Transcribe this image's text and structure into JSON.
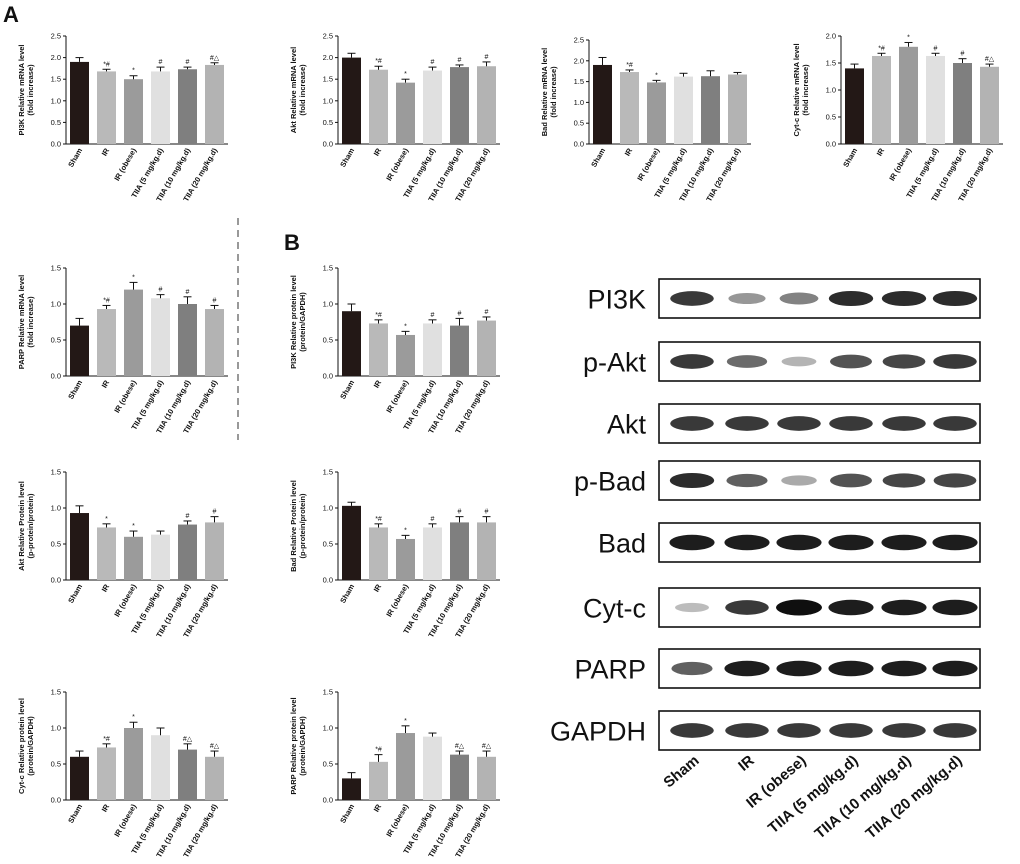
{
  "panel_labels": {
    "a": "A",
    "b": "B"
  },
  "colors": {
    "bars": [
      "#231816",
      "#b9b9b9",
      "#9b9b9b",
      "#e0e0e0",
      "#7f7f7f",
      "#b3b3b3"
    ],
    "axis": "#111111"
  },
  "chart_data": [
    {
      "id": "pi3k-mrna",
      "type": "bar",
      "title": "",
      "ylabel": [
        "PI3K Relative mRNA level",
        "(fold increase)"
      ],
      "categories": [
        "Sham",
        "IR",
        "IR (obese)",
        "TIIA (5 mg/kg.d)",
        "TIIA (10 mg/kg.d)",
        "TIIA (20 mg/kg.d)"
      ],
      "values": [
        1.9,
        1.68,
        1.5,
        1.68,
        1.73,
        1.83
      ],
      "errors": [
        0.1,
        0.05,
        0.08,
        0.1,
        0.05,
        0.05
      ],
      "significance": [
        "",
        "*#",
        "*",
        "#",
        "#",
        "#△"
      ],
      "ylim": [
        0,
        2.5
      ],
      "yticks": [
        "0.0",
        "0.5",
        "1.0",
        "1.5",
        "2.0",
        "2.5"
      ]
    },
    {
      "id": "akt-mrna",
      "type": "bar",
      "title": "",
      "ylabel": [
        "Akt Relative mRNA level",
        "(fold increase)"
      ],
      "categories": [
        "Sham",
        "IR",
        "IR (obese)",
        "TIIA (5 mg/kg.d)",
        "TIIA (10 mg/kg.d)",
        "TIIA (20 mg/kg.d)"
      ],
      "values": [
        2.0,
        1.72,
        1.42,
        1.7,
        1.78,
        1.8
      ],
      "errors": [
        0.1,
        0.08,
        0.08,
        0.08,
        0.05,
        0.1
      ],
      "significance": [
        "",
        "*#",
        "*",
        "#",
        "#",
        "#"
      ],
      "ylim": [
        0,
        2.5
      ],
      "yticks": [
        "0.0",
        "0.5",
        "1.0",
        "1.5",
        "2.0",
        "2.5"
      ]
    },
    {
      "id": "bad-mrna",
      "type": "bar",
      "title": "",
      "ylabel": [
        "Bad Relative mRNA level",
        "(fold increase)"
      ],
      "categories": [
        "Sham",
        "IR",
        "IR (obese)",
        "TIIA (5 mg/kg.d)",
        "TIIA (10 mg/kg.d)",
        "TIIA (20 mg/kg.d)"
      ],
      "values": [
        1.9,
        1.73,
        1.48,
        1.62,
        1.63,
        1.67
      ],
      "errors": [
        0.18,
        0.05,
        0.05,
        0.08,
        0.13,
        0.05
      ],
      "significance": [
        "",
        "*#",
        "*",
        "",
        "",
        ""
      ],
      "ylim": [
        0,
        2.5
      ],
      "yticks": [
        "0.0",
        "0.5",
        "1.0",
        "1.5",
        "2.0",
        "2.5"
      ]
    },
    {
      "id": "cytc-mrna",
      "type": "bar",
      "title": "",
      "ylabel": [
        "Cyt-c Relative mRNA level",
        "(fold increase)"
      ],
      "categories": [
        "Sham",
        "IR",
        "IR (obese)",
        "TIIA (5 mg/kg.d)",
        "TIIA (10 mg/kg.d)",
        "TIIA (20 mg/kg.d)"
      ],
      "values": [
        1.4,
        1.63,
        1.8,
        1.63,
        1.5,
        1.43
      ],
      "errors": [
        0.08,
        0.05,
        0.08,
        0.05,
        0.08,
        0.05
      ],
      "significance": [
        "",
        "*#",
        "*",
        "#",
        "#",
        "#△"
      ],
      "ylim": [
        0,
        2.0
      ],
      "yticks": [
        "0.0",
        "0.5",
        "1.0",
        "1.5",
        "2.0"
      ]
    },
    {
      "id": "parp-mrna",
      "type": "bar",
      "title": "",
      "ylabel": [
        "PARP Relative mRNA level",
        "(fold increase)"
      ],
      "categories": [
        "Sham",
        "IR",
        "IR (obese)",
        "TIIA (5 mg/kg.d)",
        "TIIA (10 mg/kg.d)",
        "TIIA (20 mg/kg.d)"
      ],
      "values": [
        0.7,
        0.93,
        1.2,
        1.08,
        1.0,
        0.93
      ],
      "errors": [
        0.1,
        0.05,
        0.1,
        0.05,
        0.1,
        0.05
      ],
      "significance": [
        "",
        "*#",
        "*",
        "#",
        "#",
        "#"
      ],
      "ylim": [
        0,
        1.5
      ],
      "yticks": [
        "0.0",
        "0.5",
        "1.0",
        "1.5"
      ]
    },
    {
      "id": "pi3k-protein",
      "type": "bar",
      "title": "",
      "ylabel": [
        "PI3K Relative protein level",
        "(protein/GAPDH)"
      ],
      "categories": [
        "Sham",
        "IR",
        "IR (obese)",
        "TIIA (5 mg/kg.d)",
        "TIIA (10 mg/kg.d)",
        "TIIA (20 mg/kg.d)"
      ],
      "values": [
        0.9,
        0.73,
        0.57,
        0.73,
        0.7,
        0.77
      ],
      "errors": [
        0.1,
        0.05,
        0.05,
        0.05,
        0.1,
        0.05
      ],
      "significance": [
        "",
        "*#",
        "*",
        "#",
        "#",
        "#"
      ],
      "ylim": [
        0,
        1.5
      ],
      "yticks": [
        "0.0",
        "0.5",
        "1.0",
        "1.5"
      ]
    },
    {
      "id": "akt-protein",
      "type": "bar",
      "title": "",
      "ylabel": [
        "Akt Relative Protein level",
        "(p-protein/protein)"
      ],
      "categories": [
        "Sham",
        "IR",
        "IR (obese)",
        "TIIA (5 mg/kg.d)",
        "TIIA (10 mg/kg.d)",
        "TIIA (20 mg/kg.d)"
      ],
      "values": [
        0.93,
        0.73,
        0.6,
        0.63,
        0.77,
        0.8
      ],
      "errors": [
        0.1,
        0.05,
        0.08,
        0.05,
        0.05,
        0.08
      ],
      "significance": [
        "",
        "*",
        "*",
        "",
        "#",
        "#"
      ],
      "ylim": [
        0,
        1.5
      ],
      "yticks": [
        "0.0",
        "0.5",
        "1.0",
        "1.5"
      ]
    },
    {
      "id": "bad-protein",
      "type": "bar",
      "title": "",
      "ylabel": [
        "Bad Relative Protein level",
        "(p-protein/protein)"
      ],
      "categories": [
        "Sham",
        "IR",
        "IR (obese)",
        "TIIA (5 mg/kg.d)",
        "TIIA (10 mg/kg.d)",
        "TIIA (20 mg/kg.d)"
      ],
      "values": [
        1.03,
        0.73,
        0.57,
        0.73,
        0.8,
        0.8
      ],
      "errors": [
        0.05,
        0.05,
        0.05,
        0.05,
        0.08,
        0.08
      ],
      "significance": [
        "",
        "*#",
        "*",
        "#",
        "#",
        "#"
      ],
      "ylim": [
        0,
        1.5
      ],
      "yticks": [
        "0.0",
        "0.5",
        "1.0",
        "1.5"
      ]
    },
    {
      "id": "cytc-protein",
      "type": "bar",
      "title": "",
      "ylabel": [
        "Cyt-c Relative protein level",
        "(protein/GAPDH)"
      ],
      "categories": [
        "Sham",
        "IR",
        "IR (obese)",
        "TIIA (5 mg/kg.d)",
        "TIIA (10 mg/kg.d)",
        "TIIA (20 mg/kg.d)"
      ],
      "values": [
        0.6,
        0.73,
        1.0,
        0.9,
        0.7,
        0.6
      ],
      "errors": [
        0.08,
        0.05,
        0.08,
        0.1,
        0.08,
        0.08
      ],
      "significance": [
        "",
        "*#",
        "*",
        "",
        "#△",
        "#△"
      ],
      "ylim": [
        0,
        1.5
      ],
      "yticks": [
        "0.0",
        "0.5",
        "1.0",
        "1.5"
      ]
    },
    {
      "id": "parp-protein",
      "type": "bar",
      "title": "",
      "ylabel": [
        "PARP Relative protein level",
        "(protein/GAPDH)"
      ],
      "categories": [
        "Sham",
        "IR",
        "IR (obese)",
        "TIIA (5 mg/kg.d)",
        "TIIA (10 mg/kg.d)",
        "TIIA (20 mg/kg.d)"
      ],
      "values": [
        0.3,
        0.53,
        0.93,
        0.88,
        0.63,
        0.6
      ],
      "errors": [
        0.08,
        0.1,
        0.1,
        0.05,
        0.05,
        0.08
      ],
      "significance": [
        "",
        "*#",
        "*",
        "",
        "#△",
        "#△"
      ],
      "ylim": [
        0,
        1.5
      ],
      "yticks": [
        "0.0",
        "0.5",
        "1.0",
        "1.5"
      ]
    }
  ],
  "western_blot": {
    "proteins": [
      "PI3K",
      "p-Akt",
      "Akt",
      "p-Bad",
      "Bad",
      "Cyt-c",
      "PARP",
      "GAPDH"
    ],
    "lanes": [
      "Sham",
      "IR",
      "IR (obese)",
      "TIIA (5 mg/kg.d)",
      "TIIA (10 mg/kg.d)",
      "TIIA (20 mg/kg.d)"
    ],
    "band_intensity": [
      [
        0.85,
        0.45,
        0.55,
        0.9,
        0.9,
        0.9
      ],
      [
        0.85,
        0.65,
        0.3,
        0.75,
        0.8,
        0.85
      ],
      [
        0.85,
        0.85,
        0.85,
        0.85,
        0.85,
        0.85
      ],
      [
        0.9,
        0.7,
        0.35,
        0.75,
        0.8,
        0.8
      ],
      [
        0.95,
        0.95,
        0.95,
        0.95,
        0.95,
        0.95
      ],
      [
        0.25,
        0.85,
        1.0,
        0.95,
        0.95,
        0.95
      ],
      [
        0.7,
        0.95,
        0.95,
        0.95,
        0.95,
        0.95
      ],
      [
        0.85,
        0.85,
        0.85,
        0.85,
        0.85,
        0.85
      ]
    ]
  }
}
